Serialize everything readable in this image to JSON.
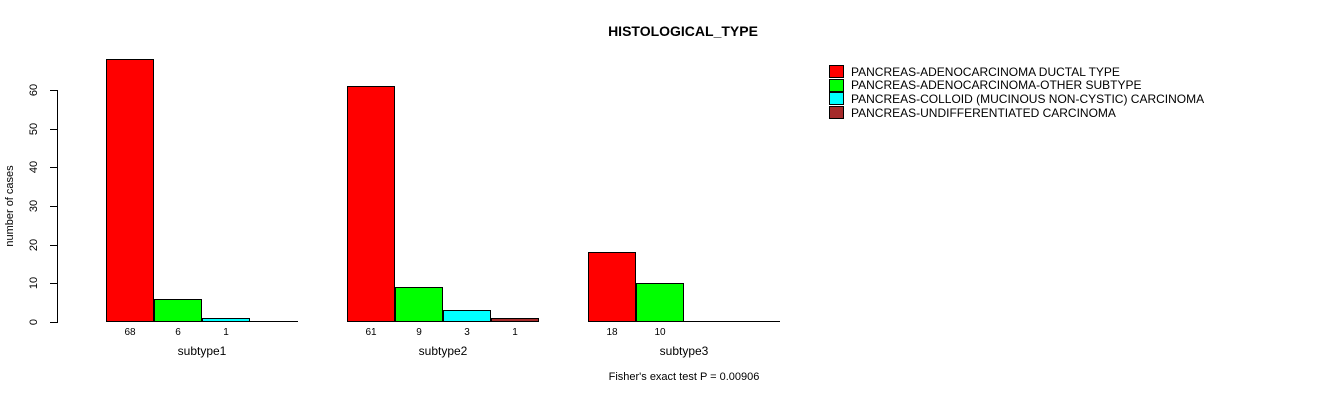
{
  "title": "HISTOLOGICAL_TYPE",
  "footer": {
    "stat_text": "Fisher's exact test P = 0.00906"
  },
  "chart_data": {
    "type": "bar",
    "title": "HISTOLOGICAL_TYPE",
    "xlabel": "",
    "ylabel": "number of cases",
    "ylim": [
      0,
      60
    ],
    "yticks": [
      0,
      10,
      20,
      30,
      40,
      50,
      60
    ],
    "grid": false,
    "legend_position": "right",
    "categories": [
      "subtype1",
      "subtype2",
      "subtype3"
    ],
    "series": [
      {
        "name": "PANCREAS-ADENOCARCINOMA DUCTAL TYPE",
        "color": "#FF0000",
        "values": [
          68,
          61,
          18
        ]
      },
      {
        "name": "PANCREAS-ADENOCARCINOMA-OTHER SUBTYPE",
        "color": "#00FF00",
        "values": [
          6,
          9,
          10
        ]
      },
      {
        "name": "PANCREAS-COLLOID (MUCINOUS NON-CYSTIC) CARCINOMA",
        "color": "#00FFFF",
        "values": [
          1,
          3,
          0
        ]
      },
      {
        "name": "PANCREAS-UNDIFFERENTIATED CARCINOMA",
        "color": "#A52A2A",
        "values": [
          0,
          1,
          0
        ]
      }
    ],
    "bar_value_labels": "values greater than zero are printed under each bar",
    "annotation": "Fisher's exact test P = 0.00906"
  }
}
